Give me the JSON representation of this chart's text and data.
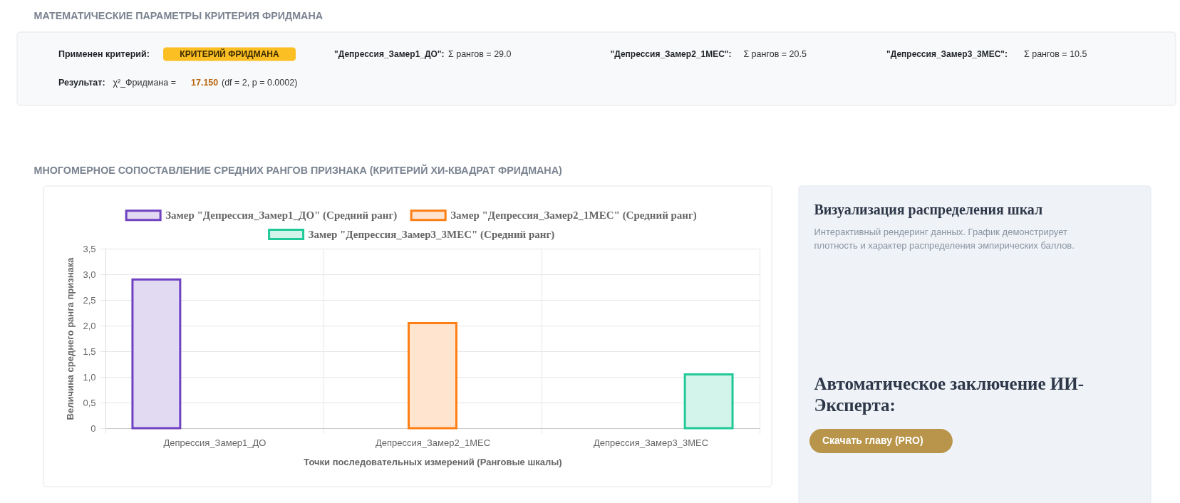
{
  "chart_data": [
    {
      "type": "other",
      "title": "МАТЕМАТИЧЕСКИЕ ПАРАМЕТРЫ КРИТЕРИЯ ФРИДМАНА",
      "annotations": [
        "Применен критерий:",
        "КРИТЕРИЙ ФРИДМАНА",
        "\"Депрессия_Замер1_ДО\":",
        "Σ рангов = 29.0",
        "\"Депрессия_Замер2_1МЕС\":",
        "Σ рангов = 20.5",
        "\"Депрессия_Замер3_3МЕС\":",
        "Σ рангов = 10.5",
        "Результат:",
        "χ²_Фридмана =",
        "17.150",
        "(df = 2, p = 0.0002)"
      ]
    },
    {
      "type": "bar",
      "title": "МНОГОМЕРНОЕ СОПОСТАВЛЕНИЕ СРЕДНИХ РАНГОВ ПРИЗНАКА (КРИТЕРИЙ ХИ-КВАДРАТ ФРИДМАНА)",
      "xlabel": "Точки последовательных измерений (Ранговые шкалы)",
      "ylabel": "Величина среднего ранга признака",
      "categories": [
        "Депрессия_Замер1_ДО",
        "Депрессия_Замер2_1МЕС",
        "Депрессия_Замер3_3МЕС"
      ],
      "series": [
        {
          "name": "Замер \"Депрессия_Замер1_ДО\" (Средний ранг)",
          "color": "#6f42c1",
          "values": [
            2.9,
            null,
            null
          ]
        },
        {
          "name": "Замер \"Депрессия_Замер2_1МЕС\" (Средний ранг)",
          "color": "#fd7e14",
          "values": [
            null,
            2.05,
            null
          ]
        },
        {
          "name": "Замер \"Депрессия_Замер3_3МЕС\" (Средний ранг)",
          "color": "#20c997",
          "values": [
            null,
            null,
            1.05
          ]
        }
      ],
      "ylim": [
        0,
        3.5
      ],
      "yticks": [
        0,
        {
          "value": 0.5,
          "label": "0,5"
        },
        {
          "value": 1,
          "label": "1,0"
        },
        {
          "value": 1.5,
          "label": "1,5"
        },
        {
          "value": 2,
          "label": "2,0"
        },
        {
          "value": 2.5,
          "label": "2,5"
        },
        {
          "value": 3,
          "label": "3,0"
        },
        {
          "value": 3.5,
          "label": "3,5"
        }
      ],
      "grid": true,
      "legend": "top"
    },
    {
      "type": "other",
      "title": "Визуализация распределения шкал",
      "annotations": [
        "Интерактивный рендеринг данных. График демонстрирует плотность и характер распределения эмпирических баллов.",
        "Автоматическое заключение ИИ-Эксперта:",
        "Скачать главу (PRO)"
      ]
    }
  ]
}
